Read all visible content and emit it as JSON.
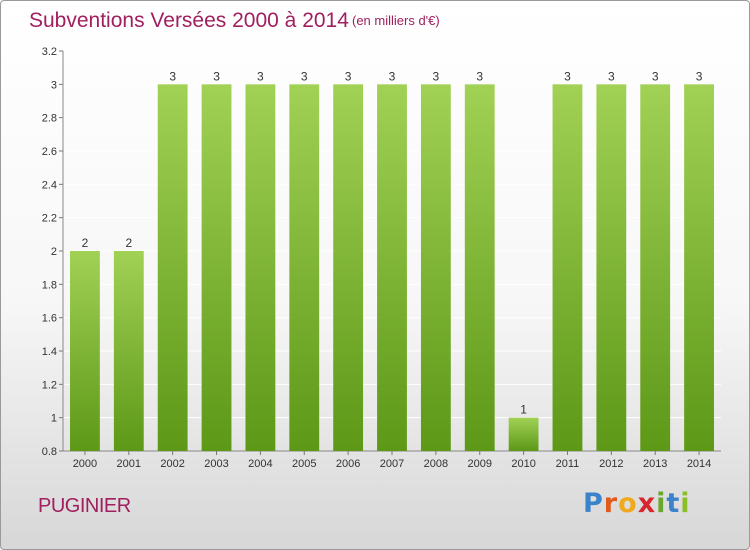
{
  "header": {
    "title": "Subventions Versées 2000 à 2014",
    "unit": "(en milliers d'€)"
  },
  "footer": {
    "commune": "PUGINIER",
    "logo_letters": [
      "P",
      "r",
      "o",
      "x",
      "i",
      "t",
      "i"
    ],
    "logo_colors": [
      "#3a82c9",
      "#e05a1c",
      "#f0a81c",
      "#d8262e",
      "#6aa72d",
      "#3a82c9",
      "#8cbf26"
    ]
  },
  "colors": {
    "bar_top": "#a1d155",
    "bar_bottom": "#5d9817",
    "title": "#a0205f",
    "grid": "#ffffff",
    "axis_text": "#333333"
  },
  "chart_data": {
    "type": "bar",
    "title": "Subventions Versées 2000 à 2014",
    "categories": [
      "2000",
      "2001",
      "2002",
      "2003",
      "2004",
      "2005",
      "2006",
      "2007",
      "2008",
      "2009",
      "2010",
      "2011",
      "2012",
      "2013",
      "2014"
    ],
    "values": [
      2,
      2,
      3,
      3,
      3,
      3,
      3,
      3,
      3,
      3,
      1,
      3,
      3,
      3,
      3
    ],
    "value_labels": [
      "2",
      "2",
      "3",
      "3",
      "3",
      "3",
      "3",
      "3",
      "3",
      "3",
      "1",
      "3",
      "3",
      "3",
      "3"
    ],
    "ylim": [
      0.8,
      3.2
    ],
    "yticks": [
      0.8,
      1,
      1.2,
      1.4,
      1.6,
      1.8,
      2,
      2.2,
      2.4,
      2.6,
      2.8,
      3,
      3.2
    ],
    "ytick_labels": [
      "0.8",
      "1",
      "1.2",
      "1.4",
      "1.6",
      "1.8",
      "2",
      "2.2",
      "2.4",
      "2.6",
      "2.8",
      "3",
      "3.2"
    ],
    "grid": true
  }
}
